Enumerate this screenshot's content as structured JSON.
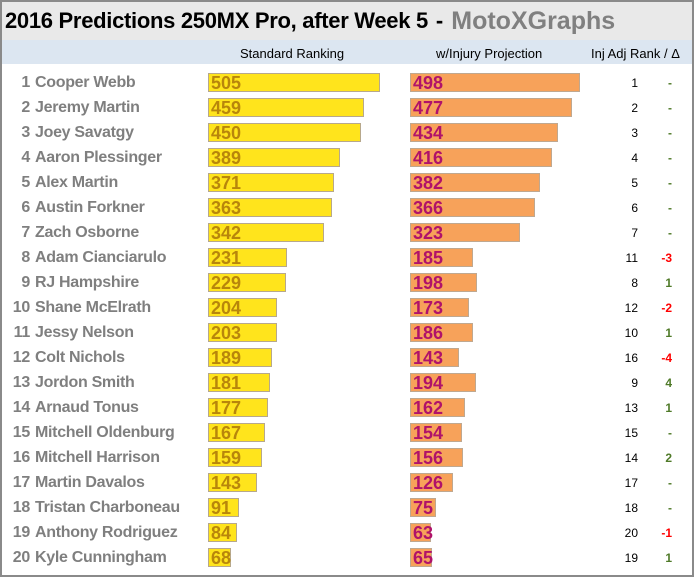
{
  "title": "2016 Predictions 250MX Pro, after Week 5",
  "separator": "-",
  "brand": "MotoXGraphs",
  "headers": {
    "standard": "Standard Ranking",
    "injury": "w/Injury Projection",
    "rank": "Inj Adj Rank / Δ"
  },
  "colors": {
    "standard_bar": "#ffe41c",
    "injury_bar": "#f7a25a",
    "positive": "#4f7a28",
    "negative": "#ff0000",
    "neutral": "#4f7a28"
  },
  "chart_data": {
    "type": "bar",
    "title": "2016 Predictions 250MX Pro, after Week 5",
    "series_names": [
      "Standard Ranking",
      "w/Injury Projection"
    ],
    "rows": [
      {
        "pos": "1",
        "name": "Cooper Webb",
        "standard": 505,
        "injury": 498,
        "rank": "1",
        "delta": "-"
      },
      {
        "pos": "2",
        "name": "Jeremy Martin",
        "standard": 459,
        "injury": 477,
        "rank": "2",
        "delta": "-"
      },
      {
        "pos": "3",
        "name": "Joey Savatgy",
        "standard": 450,
        "injury": 434,
        "rank": "3",
        "delta": "-"
      },
      {
        "pos": "4",
        "name": "Aaron Plessinger",
        "standard": 389,
        "injury": 416,
        "rank": "4",
        "delta": "-"
      },
      {
        "pos": "5",
        "name": "Alex Martin",
        "standard": 371,
        "injury": 382,
        "rank": "5",
        "delta": "-"
      },
      {
        "pos": "6",
        "name": "Austin Forkner",
        "standard": 363,
        "injury": 366,
        "rank": "6",
        "delta": "-"
      },
      {
        "pos": "7",
        "name": "Zach Osborne",
        "standard": 342,
        "injury": 323,
        "rank": "7",
        "delta": "-"
      },
      {
        "pos": "8",
        "name": "Adam Cianciarulo",
        "standard": 231,
        "injury": 185,
        "rank": "11",
        "delta": "-3"
      },
      {
        "pos": "9",
        "name": "RJ Hampshire",
        "standard": 229,
        "injury": 198,
        "rank": "8",
        "delta": "1"
      },
      {
        "pos": "10",
        "name": "Shane McElrath",
        "standard": 204,
        "injury": 173,
        "rank": "12",
        "delta": "-2"
      },
      {
        "pos": "11",
        "name": "Jessy Nelson",
        "standard": 203,
        "injury": 186,
        "rank": "10",
        "delta": "1"
      },
      {
        "pos": "12",
        "name": "Colt Nichols",
        "standard": 189,
        "injury": 143,
        "rank": "16",
        "delta": "-4"
      },
      {
        "pos": "13",
        "name": "Jordon Smith",
        "standard": 181,
        "injury": 194,
        "rank": "9",
        "delta": "4"
      },
      {
        "pos": "14",
        "name": "Arnaud Tonus",
        "standard": 177,
        "injury": 162,
        "rank": "13",
        "delta": "1"
      },
      {
        "pos": "15",
        "name": "Mitchell Oldenburg",
        "standard": 167,
        "injury": 154,
        "rank": "15",
        "delta": "-"
      },
      {
        "pos": "16",
        "name": "Mitchell Harrison",
        "standard": 159,
        "injury": 156,
        "rank": "14",
        "delta": "2"
      },
      {
        "pos": "17",
        "name": "Martin Davalos",
        "standard": 143,
        "injury": 126,
        "rank": "17",
        "delta": "-"
      },
      {
        "pos": "18",
        "name": "Tristan Charboneau",
        "standard": 91,
        "injury": 75,
        "rank": "18",
        "delta": "-"
      },
      {
        "pos": "19",
        "name": "Anthony Rodriguez",
        "standard": 84,
        "injury": 63,
        "rank": "20",
        "delta": "-1"
      },
      {
        "pos": "20",
        "name": "Kyle Cunningham",
        "standard": 68,
        "injury": 65,
        "rank": "19",
        "delta": "1"
      }
    ],
    "xlim": [
      0,
      505
    ]
  }
}
